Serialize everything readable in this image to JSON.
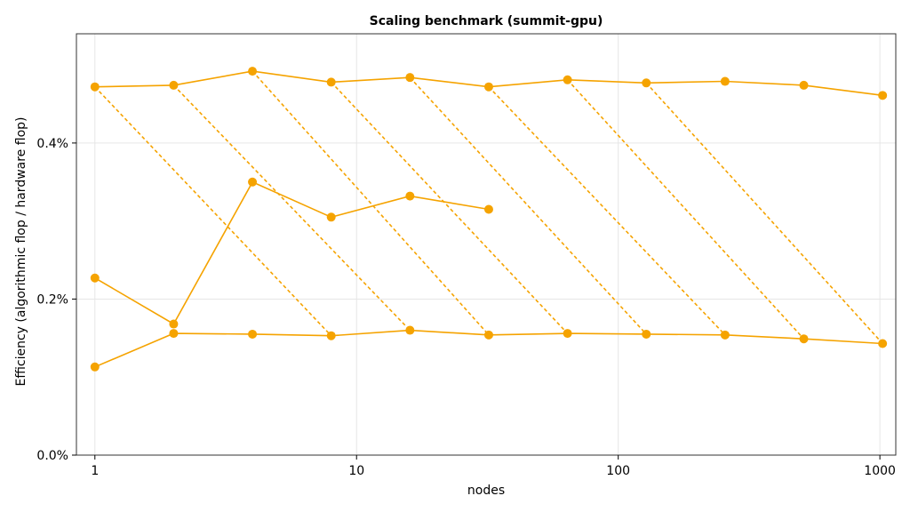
{
  "chart_data": {
    "type": "line",
    "title": "Scaling benchmark (summit-gpu)",
    "xlabel": "nodes",
    "ylabel": "Efficiency (algorithmic flop / hardware flop)",
    "x_scale": "log",
    "xlim": [
      0.85,
      1150
    ],
    "ylim": [
      0.0,
      0.0054
    ],
    "x_ticks": [
      1,
      10,
      100,
      1000
    ],
    "x_tick_labels": [
      "1",
      "10",
      "100",
      "1000"
    ],
    "y_ticks": [
      0.0,
      0.002,
      0.004
    ],
    "y_tick_labels": [
      "0.0%",
      "0.2%",
      "0.4%"
    ],
    "grid": true,
    "legend": "none",
    "color": "#F5A300",
    "series": [
      {
        "style": "solid",
        "points": [
          [
            1,
            0.00472
          ],
          [
            2,
            0.00474
          ],
          [
            4,
            0.00492
          ],
          [
            8,
            0.00478
          ],
          [
            16,
            0.00484
          ],
          [
            32,
            0.00472
          ],
          [
            64,
            0.00481
          ],
          [
            128,
            0.00477
          ],
          [
            256,
            0.00479
          ],
          [
            512,
            0.00474
          ],
          [
            1024,
            0.00461
          ]
        ]
      },
      {
        "style": "solid",
        "points": [
          [
            1,
            0.00227
          ],
          [
            2,
            0.00168
          ],
          [
            4,
            0.0035
          ],
          [
            8,
            0.00305
          ],
          [
            16,
            0.00332
          ],
          [
            32,
            0.00315
          ]
        ]
      },
      {
        "style": "solid",
        "points": [
          [
            1,
            0.00113
          ],
          [
            2,
            0.00156
          ],
          [
            4,
            0.00155
          ],
          [
            8,
            0.00153
          ],
          [
            16,
            0.0016
          ],
          [
            32,
            0.00154
          ],
          [
            64,
            0.00156
          ],
          [
            128,
            0.00155
          ],
          [
            256,
            0.00154
          ],
          [
            512,
            0.00149
          ],
          [
            1024,
            0.00143
          ]
        ]
      },
      {
        "style": "dashed",
        "points": [
          [
            1,
            0.00472
          ],
          [
            8,
            0.00153
          ]
        ]
      },
      {
        "style": "dashed",
        "points": [
          [
            2,
            0.00474
          ],
          [
            16,
            0.0016
          ]
        ]
      },
      {
        "style": "dashed",
        "points": [
          [
            4,
            0.00492
          ],
          [
            32,
            0.00154
          ]
        ]
      },
      {
        "style": "dashed",
        "points": [
          [
            8,
            0.00478
          ],
          [
            64,
            0.00156
          ]
        ]
      },
      {
        "style": "dashed",
        "points": [
          [
            16,
            0.00484
          ],
          [
            128,
            0.00155
          ]
        ]
      },
      {
        "style": "dashed",
        "points": [
          [
            32,
            0.00472
          ],
          [
            256,
            0.00154
          ]
        ]
      },
      {
        "style": "dashed",
        "points": [
          [
            64,
            0.00481
          ],
          [
            512,
            0.00149
          ]
        ]
      },
      {
        "style": "dashed",
        "points": [
          [
            128,
            0.00477
          ],
          [
            1024,
            0.00143
          ]
        ]
      }
    ]
  }
}
